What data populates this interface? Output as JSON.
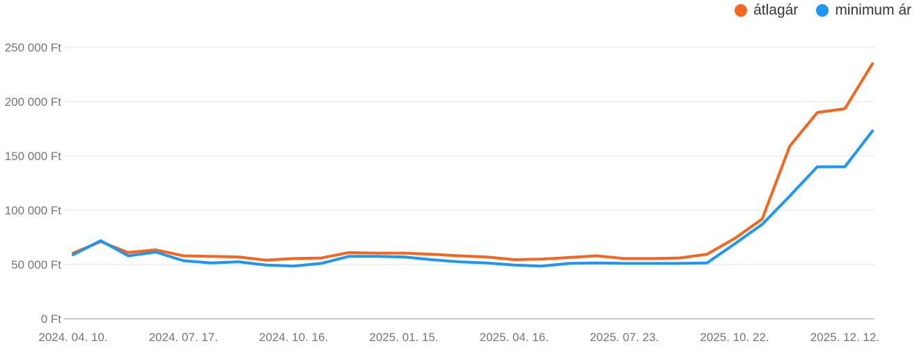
{
  "legend": {
    "items": [
      {
        "label": "átlagár"
      },
      {
        "label": "minimum ár"
      }
    ]
  },
  "chart_data": {
    "type": "line",
    "title": "",
    "xlabel": "",
    "ylabel": "",
    "currency": "Ft",
    "ylim": [
      0,
      250000
    ],
    "y_tick_labels": [
      "0 Ft",
      "50 000 Ft",
      "100 000 Ft",
      "150 000 Ft",
      "200 000 Ft",
      "250 000 Ft"
    ],
    "y_tick_values": [
      0,
      50000,
      100000,
      150000,
      200000,
      250000
    ],
    "x_tick_labels": [
      "2024. 04. 10.",
      "2024. 07. 17.",
      "2024. 10. 16.",
      "2025. 01. 15.",
      "2025. 04. 16.",
      "2025. 07. 23.",
      "2025. 10. 22.",
      "2025. 12. 12."
    ],
    "x_tick_point_indices": [
      0,
      4,
      8,
      12,
      16,
      20,
      24,
      28
    ],
    "grid": "horizontal-only",
    "legend_position": "top-right",
    "series": [
      {
        "name": "átlagár",
        "color": "#f4661d",
        "values": [
          60500,
          71000,
          61000,
          63500,
          58000,
          57500,
          57000,
          54000,
          55500,
          56000,
          61000,
          60500,
          60500,
          59500,
          58000,
          57000,
          54500,
          55000,
          56500,
          58000,
          55500,
          55500,
          56000,
          59500,
          74000,
          92000,
          159000,
          190000,
          193500,
          235000
        ]
      },
      {
        "name": "minimum ár",
        "color": "#1f96f0",
        "values": [
          59000,
          72000,
          58000,
          61500,
          53500,
          51500,
          52500,
          49500,
          48500,
          51000,
          57500,
          57500,
          57000,
          54500,
          52500,
          51500,
          49500,
          48500,
          51000,
          51500,
          51000,
          51000,
          51000,
          51500,
          69000,
          87000,
          113000,
          140000,
          140000,
          173000
        ]
      }
    ],
    "colors": {
      "axis_label_text": "#757575",
      "gridline": "#f2f2f2",
      "baseline": "#b5b5b5",
      "legend_text": "#373737",
      "background": "#ffffff"
    }
  }
}
